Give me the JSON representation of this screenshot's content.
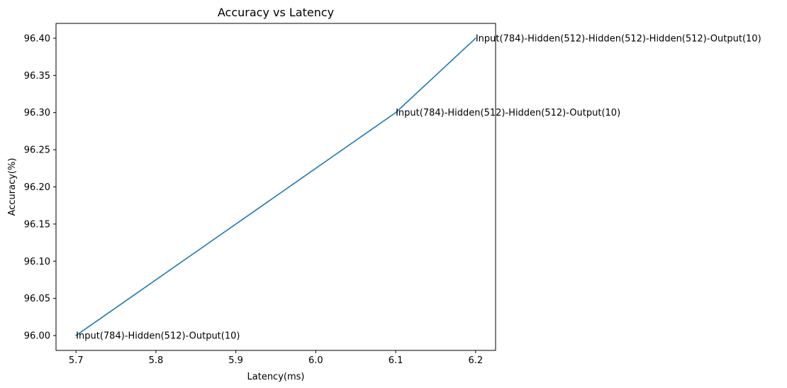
{
  "chart_data": {
    "type": "line",
    "title": "Accuracy vs Latency",
    "xlabel": "Latency(ms)",
    "ylabel": "Accuracy(%)",
    "x": [
      5.7,
      6.1,
      6.2
    ],
    "y": [
      96.0,
      96.3,
      96.4
    ],
    "annotations": [
      "Input(784)-Hidden(512)-Output(10)",
      "Input(784)-Hidden(512)-Hidden(512)-Output(10)",
      "Input(784)-Hidden(512)-Hidden(512)-Hidden(512)-Output(10)"
    ],
    "xlim": [
      5.675,
      6.225
    ],
    "ylim": [
      95.98,
      96.42
    ],
    "xticks": [
      "5.7",
      "5.8",
      "5.9",
      "6.0",
      "6.1",
      "6.2"
    ],
    "yticks": [
      "96.00",
      "96.05",
      "96.10",
      "96.15",
      "96.20",
      "96.25",
      "96.30",
      "96.35",
      "96.40"
    ],
    "line_color": "#1f77b4",
    "grid": false,
    "legend": "none"
  }
}
